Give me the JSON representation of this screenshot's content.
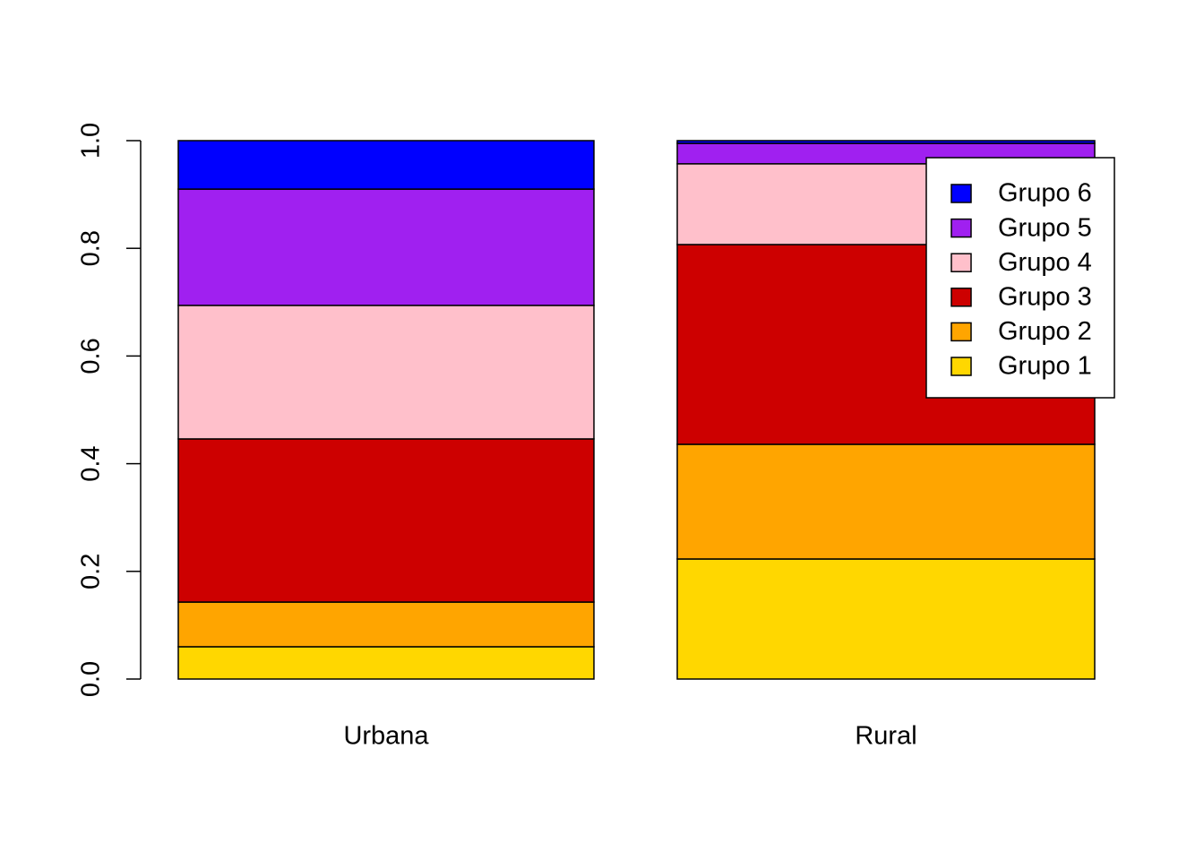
{
  "chart_data": {
    "type": "stacked-bar",
    "categories": [
      "Urbana",
      "Rural"
    ],
    "series": [
      {
        "name": "Grupo 1",
        "color": "#FFD700",
        "values": [
          0.06,
          0.223
        ]
      },
      {
        "name": "Grupo 2",
        "color": "#FFA500",
        "values": [
          0.083,
          0.213
        ]
      },
      {
        "name": "Grupo 3",
        "color": "#CD0000",
        "values": [
          0.303,
          0.371
        ]
      },
      {
        "name": "Grupo 4",
        "color": "#FFC0CB",
        "values": [
          0.248,
          0.15
        ]
      },
      {
        "name": "Grupo 5",
        "color": "#A020F0",
        "values": [
          0.216,
          0.038
        ]
      },
      {
        "name": "Grupo 6",
        "color": "#0000FF",
        "values": [
          0.09,
          0.005
        ]
      }
    ],
    "ylim": [
      0,
      1
    ],
    "yticks": [
      {
        "value": 0,
        "label": "0.0"
      },
      0.2,
      0.4,
      0.6,
      0.8,
      {
        "value": 1,
        "label": "1.0"
      }
    ],
    "legend": "top-right"
  }
}
